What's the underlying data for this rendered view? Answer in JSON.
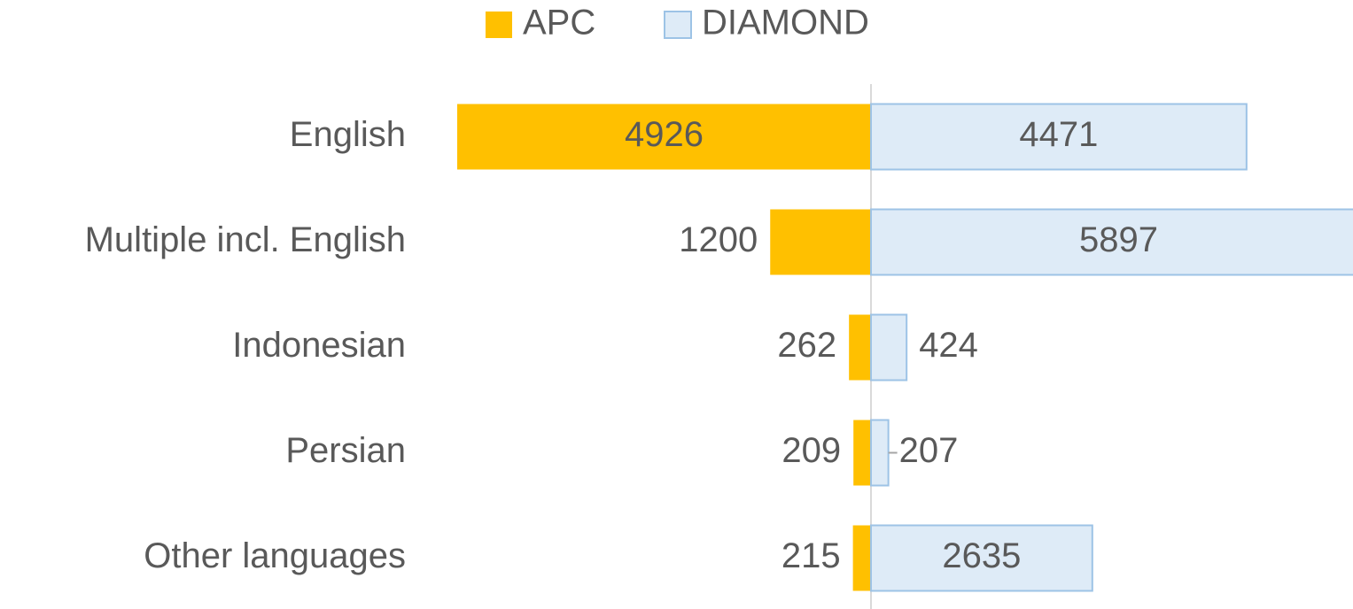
{
  "chart_data": {
    "type": "diverging-bar",
    "categories": [
      "English",
      "Multiple incl. English",
      "Indonesian",
      "Persian",
      "Other languages"
    ],
    "series": [
      {
        "name": "APC",
        "color": "#ffc000",
        "values": [
          4926,
          1200,
          262,
          209,
          215
        ]
      },
      {
        "name": "DIAMOND",
        "color": "#deebf7",
        "values": [
          4471,
          5897,
          424,
          207,
          2635
        ]
      }
    ],
    "legend": "top"
  }
}
